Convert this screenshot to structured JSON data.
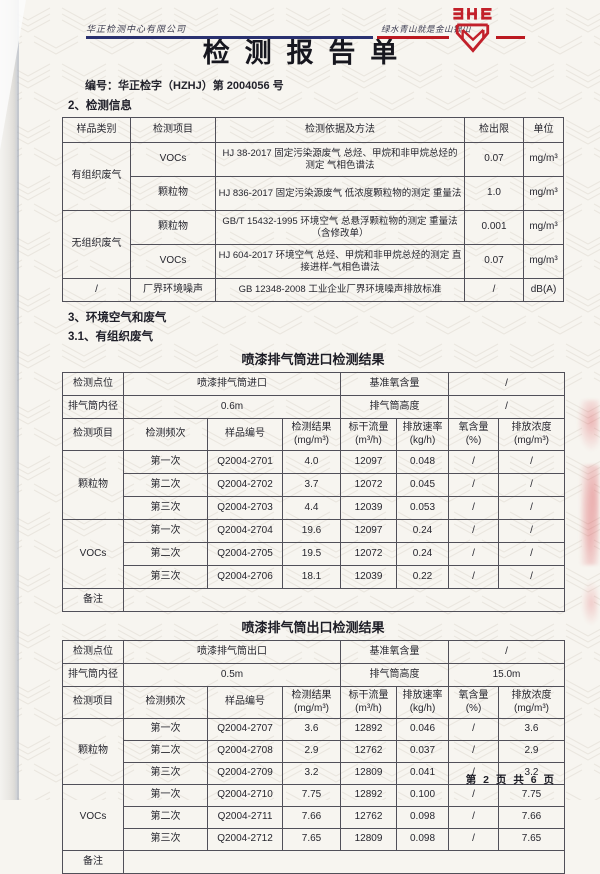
{
  "header": {
    "company": "华正检测中心有限公司",
    "slogan": "绿水青山就是金山银山",
    "logo_icon": "he-shield-emblem",
    "accent_navy": "#2a3170",
    "accent_red": "#bb1920"
  },
  "title": "检测报告单",
  "report_no": "编号：华正检字（HZHJ）第 2004056 号",
  "sections": {
    "info_heading": "2、检测信息",
    "air_heading": "3、环境空气和废气",
    "organized_heading": "3.1、有组织废气"
  },
  "info_table": {
    "columns": [
      "样品类别",
      "检测项目",
      "检测依据及方法",
      "检出限",
      "单位"
    ],
    "groups": [
      {
        "category": "有组织废气",
        "rows": [
          [
            "VOCs",
            "HJ 38-2017 固定污染源废气 总烃、甲烷和非甲烷总烃的测定 气相色谱法",
            "0.07",
            "mg/m³"
          ],
          [
            "颗粒物",
            "HJ 836-2017 固定污染源废气 低浓度颗粒物的测定 重量法",
            "1.0",
            "mg/m³"
          ]
        ]
      },
      {
        "category": "无组织废气",
        "rows": [
          [
            "颗粒物",
            "GB/T 15432-1995 环境空气 总悬浮颗粒物的测定 重量法（含修改单）",
            "0.001",
            "mg/m³"
          ],
          [
            "VOCs",
            "HJ 604-2017 环境空气 总烃、甲烷和非甲烷总烃的测定 直接进样-气相色谱法",
            "0.07",
            "mg/m³"
          ]
        ]
      },
      {
        "category": "/",
        "rows": [
          [
            "厂界环境噪声",
            "GB 12348-2008 工业企业厂界环境噪声排放标准",
            "/",
            "dB(A)"
          ]
        ]
      }
    ]
  },
  "inlet_table": {
    "title": "喷漆排气筒进口检测结果",
    "meta_rows": [
      [
        "检测点位",
        "喷漆排气筒进口",
        "基准氧含量",
        "/"
      ],
      [
        "排气筒内径",
        "0.6m",
        "排气筒高度",
        "/"
      ]
    ],
    "columns": [
      "检测项目",
      "检测频次",
      "样品编号",
      "检测结果\n(mg/m³)",
      "标干流量\n(m³/h)",
      "排放速率\n(kg/h)",
      "氧含量\n(%)",
      "排放浓度\n(mg/m³)"
    ],
    "groups": [
      {
        "item": "颗粒物",
        "rows": [
          [
            "第一次",
            "Q2004-2701",
            "4.0",
            "12097",
            "0.048",
            "/",
            "/"
          ],
          [
            "第二次",
            "Q2004-2702",
            "3.7",
            "12072",
            "0.045",
            "/",
            "/"
          ],
          [
            "第三次",
            "Q2004-2703",
            "4.4",
            "12039",
            "0.053",
            "/",
            "/"
          ]
        ]
      },
      {
        "item": "VOCs",
        "rows": [
          [
            "第一次",
            "Q2004-2704",
            "19.6",
            "12097",
            "0.24",
            "/",
            "/"
          ],
          [
            "第二次",
            "Q2004-2705",
            "19.5",
            "12072",
            "0.24",
            "/",
            "/"
          ],
          [
            "第三次",
            "Q2004-2706",
            "18.1",
            "12039",
            "0.22",
            "/",
            "/"
          ]
        ]
      }
    ],
    "note_label": "备注",
    "note_value": ""
  },
  "outlet_table": {
    "title": "喷漆排气筒出口检测结果",
    "meta_rows": [
      [
        "检测点位",
        "喷漆排气筒出口",
        "基准氧含量",
        "/"
      ],
      [
        "排气筒内径",
        "0.5m",
        "排气筒高度",
        "15.0m"
      ]
    ],
    "columns": [
      "检测项目",
      "检测频次",
      "样品编号",
      "检测结果\n(mg/m³)",
      "标干流量\n(m³/h)",
      "排放速率\n(kg/h)",
      "氧含量\n(%)",
      "排放浓度\n(mg/m³)"
    ],
    "groups": [
      {
        "item": "颗粒物",
        "rows": [
          [
            "第一次",
            "Q2004-2707",
            "3.6",
            "12892",
            "0.046",
            "/",
            "3.6"
          ],
          [
            "第二次",
            "Q2004-2708",
            "2.9",
            "12762",
            "0.037",
            "/",
            "2.9"
          ],
          [
            "第三次",
            "Q2004-2709",
            "3.2",
            "12809",
            "0.041",
            "/",
            "3.2"
          ]
        ]
      },
      {
        "item": "VOCs",
        "rows": [
          [
            "第一次",
            "Q2004-2710",
            "7.75",
            "12892",
            "0.100",
            "/",
            "7.75"
          ],
          [
            "第二次",
            "Q2004-2711",
            "7.66",
            "12762",
            "0.098",
            "/",
            "7.66"
          ],
          [
            "第三次",
            "Q2004-2712",
            "7.65",
            "12809",
            "0.098",
            "/",
            "7.65"
          ]
        ]
      }
    ],
    "note_label": "备注",
    "note_value": ""
  },
  "footer": {
    "page_info": "第 2 页 共 6 页"
  }
}
